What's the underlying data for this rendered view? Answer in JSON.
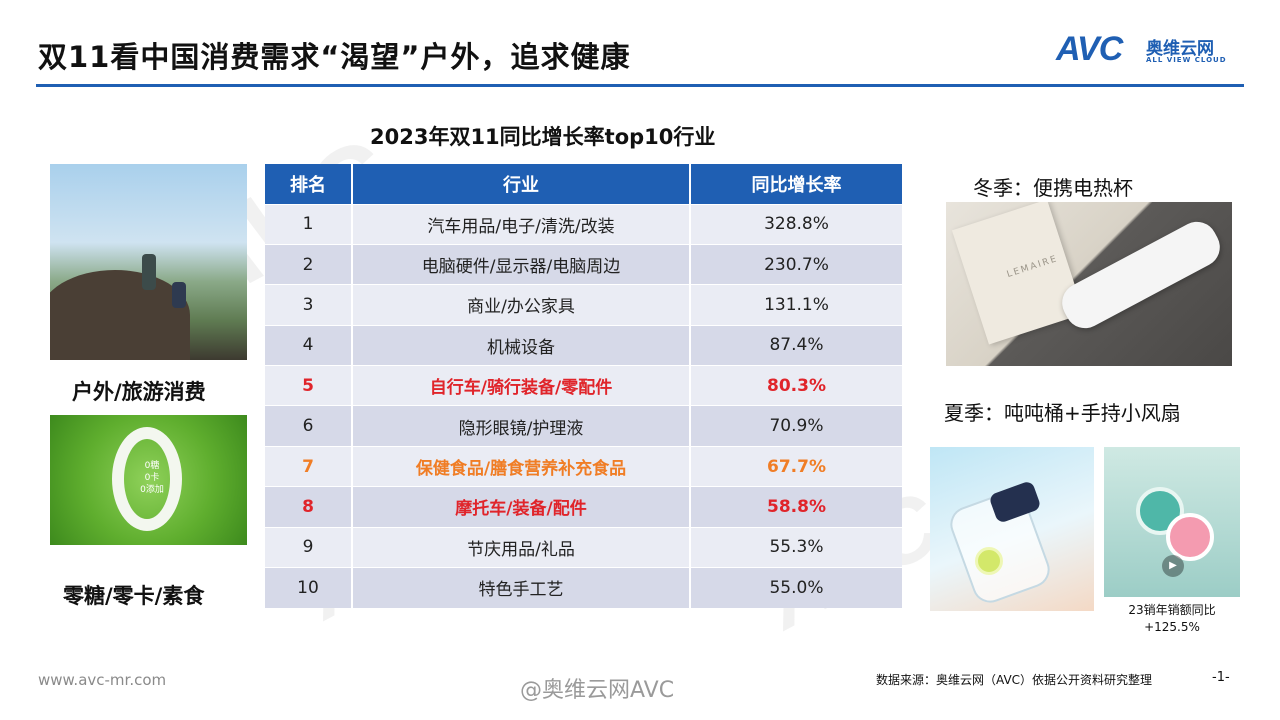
{
  "header": {
    "title": "双11看中国消费需求“渴望”户外，追求健康",
    "logo_mark": "AVC",
    "logo_cn": "奥维云网",
    "logo_en": "ALL VIEW CLOUD"
  },
  "table": {
    "title": "2023年双11同比增长率top10行业",
    "columns": [
      "排名",
      "行业",
      "同比增长率"
    ],
    "rows": [
      {
        "rank": "1",
        "industry": "汽车用品/电子/清洗/改装",
        "growth": "328.8%",
        "style": "normal"
      },
      {
        "rank": "2",
        "industry": "电脑硬件/显示器/电脑周边",
        "growth": "230.7%",
        "style": "normal"
      },
      {
        "rank": "3",
        "industry": "商业/办公家具",
        "growth": "131.1%",
        "style": "normal"
      },
      {
        "rank": "4",
        "industry": "机械设备",
        "growth": "87.4%",
        "style": "normal"
      },
      {
        "rank": "5",
        "industry": "自行车/骑行装备/零配件",
        "growth": "80.3%",
        "style": "red"
      },
      {
        "rank": "6",
        "industry": "隐形眼镜/护理液",
        "growth": "70.9%",
        "style": "normal"
      },
      {
        "rank": "7",
        "industry": "保健食品/膳食营养补充食品",
        "growth": "67.7%",
        "style": "orange"
      },
      {
        "rank": "8",
        "industry": "摩托车/装备/配件",
        "growth": "58.8%",
        "style": "red"
      },
      {
        "rank": "9",
        "industry": "节庆用品/礼品",
        "growth": "55.3%",
        "style": "normal"
      },
      {
        "rank": "10",
        "industry": "特色手工艺",
        "growth": "55.0%",
        "style": "normal"
      }
    ]
  },
  "left": {
    "outdoor_label": "户外/旅游消费",
    "green_text": [
      "0糖",
      "0卡",
      "0添加"
    ],
    "sugar_label": "零糖/零卡/素食"
  },
  "right": {
    "winter_label": "冬季：便携电热杯",
    "cup_brand": "LEMAIRE",
    "summer_label": "夏季：吨吨桶+手持小风扇",
    "fan_caption_line1": "23销年销额同比",
    "fan_caption_line2": "+125.5%"
  },
  "footer": {
    "url": "www.avc-mr.com",
    "weibo": "@奥维云网AVC",
    "source": "数据来源：奥维云网（AVC）依据公开资料研究整理",
    "page": "-1-"
  },
  "colors": {
    "accent": "#1f5fb3",
    "highlight_red": "#e0242a",
    "highlight_orange": "#f07d25"
  },
  "icons": {
    "play": "play-icon"
  }
}
